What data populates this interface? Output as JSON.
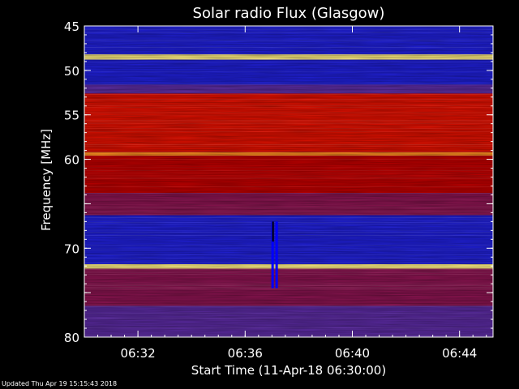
{
  "footer": {
    "updated": "Updated Thu Apr 19 15:15:43 2018"
  },
  "chart_data": {
    "type": "heatmap",
    "title": "Solar radio Flux (Glasgow)",
    "xlabel": "Start Time (11-Apr-18 06:30:00)",
    "ylabel": "Frequency [MHz]",
    "x_start": "06:30:00",
    "x_end": "06:45:15",
    "x_ticks": [
      "06:32",
      "06:36",
      "06:40",
      "06:44"
    ],
    "x_tick_minutes": [
      2,
      6,
      10,
      14
    ],
    "x_range_minutes": [
      0,
      15.25
    ],
    "y_ticks": [
      45,
      50,
      55,
      60,
      65,
      70,
      75,
      80
    ],
    "y_tick_labels": [
      "45",
      "50",
      "55",
      "60",
      "",
      "70",
      "",
      "80"
    ],
    "ylim": [
      45,
      80
    ],
    "y_inverted": true,
    "bands": [
      {
        "from": 45.0,
        "to": 48.2,
        "level": "low"
      },
      {
        "from": 48.2,
        "to": 48.8,
        "level": "very high"
      },
      {
        "from": 48.8,
        "to": 51.6,
        "level": "low"
      },
      {
        "from": 51.6,
        "to": 52.6,
        "level": "low-medium"
      },
      {
        "from": 52.6,
        "to": 59.2,
        "level": "medium-high"
      },
      {
        "from": 59.2,
        "to": 59.6,
        "level": "high"
      },
      {
        "from": 59.6,
        "to": 63.8,
        "level": "medium"
      },
      {
        "from": 63.8,
        "to": 66.3,
        "level": "medium-low"
      },
      {
        "from": 66.3,
        "to": 71.8,
        "level": "low"
      },
      {
        "from": 71.8,
        "to": 72.3,
        "level": "very high"
      },
      {
        "from": 72.3,
        "to": 76.5,
        "level": "medium-low"
      },
      {
        "from": 76.5,
        "to": 80.0,
        "level": "low-medium"
      }
    ],
    "events": [
      {
        "time_minutes": 7.1,
        "from_mhz": 67.0,
        "to_mhz": 74.5,
        "description": "vertical feature"
      }
    ],
    "colormap": [
      "#000000",
      "#1a0064",
      "#0000e6",
      "#5028a8",
      "#c80000",
      "#ff3000",
      "#ff9000",
      "#ffff60",
      "#ffffff"
    ]
  }
}
